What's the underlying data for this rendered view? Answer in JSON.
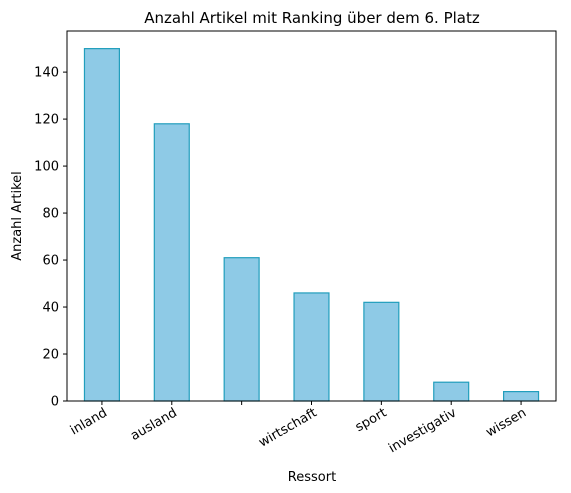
{
  "chart_data": {
    "type": "bar",
    "title": "Anzahl Artikel mit Ranking über dem 6. Platz",
    "xlabel": "Ressort",
    "ylabel": "Anzahl Artikel",
    "categories": [
      "inland",
      "ausland",
      "",
      "wirtschaft",
      "sport",
      "investigativ",
      "wissen"
    ],
    "values": [
      150,
      118,
      61,
      46,
      42,
      8,
      4
    ],
    "ylim": [
      0,
      157.5
    ],
    "yticks": [
      0,
      20,
      40,
      60,
      80,
      100,
      120,
      140
    ],
    "bar_fill": "#8ecae6",
    "bar_edge": "#219ebc",
    "grid": false,
    "legend": false
  }
}
